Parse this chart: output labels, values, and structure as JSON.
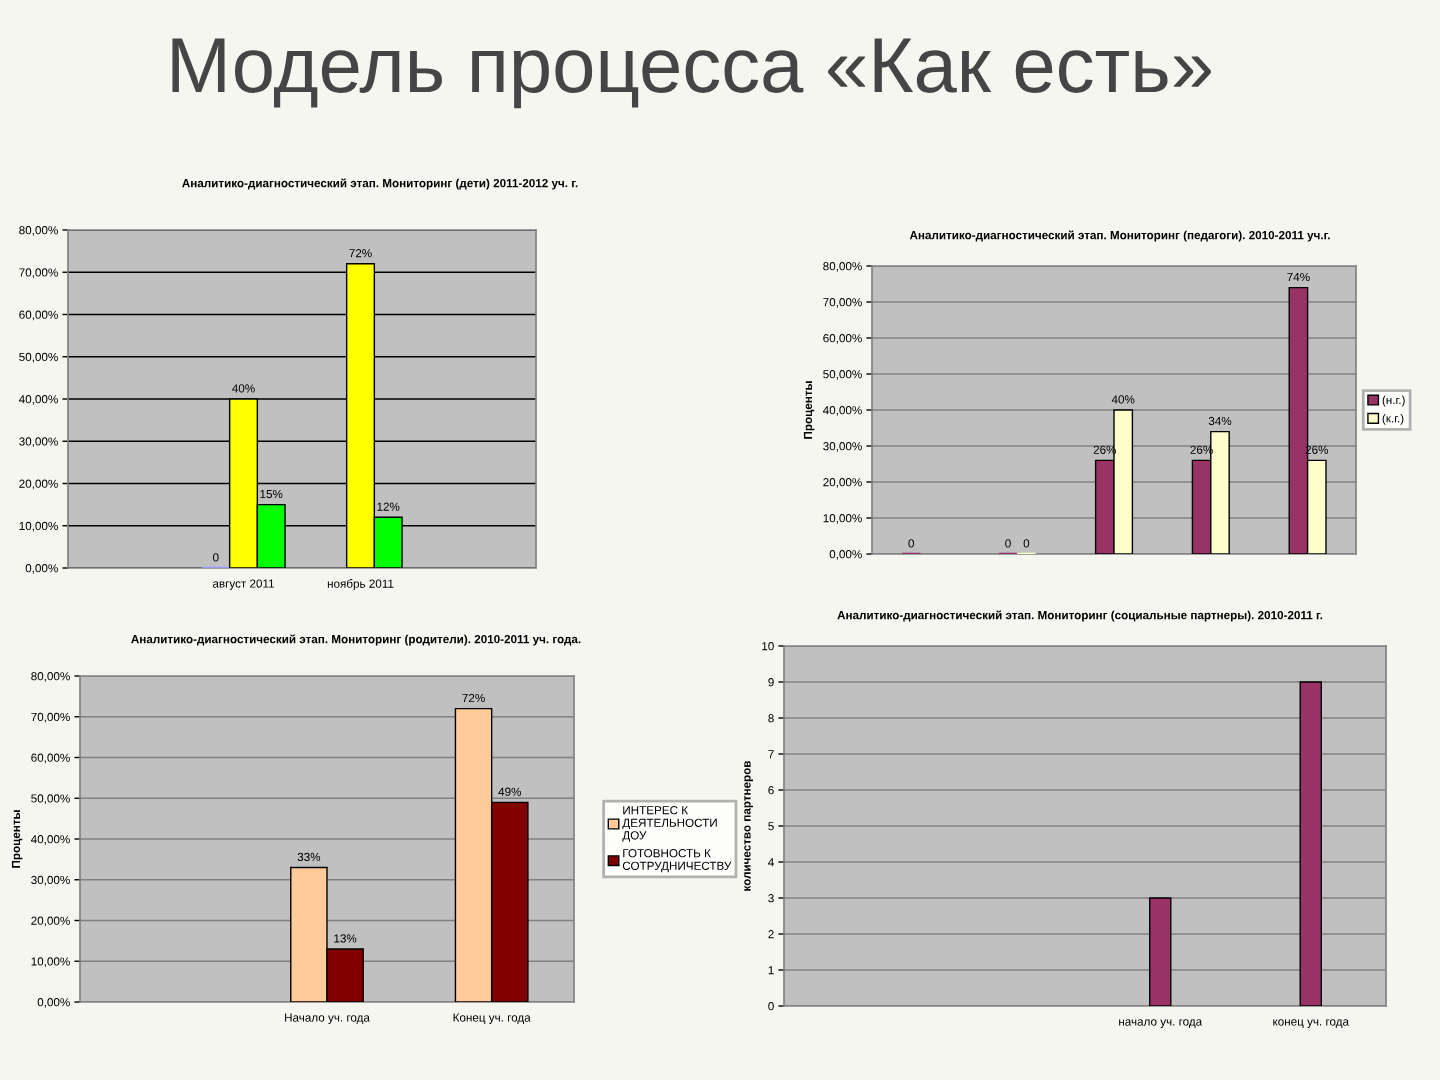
{
  "chart_data": [
    {
      "type": "other",
      "title": "Модель процесса «Как есть»"
    },
    {
      "type": "bar",
      "title": "Аналитико-диагностический этап. Мониторинг (дети) 2011-2012 уч. г.",
      "categories": [
        null,
        "август 2011",
        "ноябрь 2011",
        null
      ],
      "series": [
        {
          "values": [
            null,
            0,
            null,
            null
          ],
          "value_labels": [
            null,
            "0",
            null,
            null
          ]
        },
        {
          "color": "#ffff00",
          "values": [
            null,
            40,
            72,
            null
          ],
          "value_labels": [
            null,
            "40%",
            "72%",
            null
          ]
        },
        {
          "color": "#00ff00",
          "values": [
            null,
            15,
            12,
            null
          ],
          "value_labels": [
            null,
            "15%",
            "12%",
            null
          ]
        }
      ],
      "ylim": [
        0,
        80
      ],
      "yticks": [
        {
          "value": 0,
          "label": "0,00%"
        },
        {
          "value": 10,
          "label": "10,00%"
        },
        {
          "value": 20,
          "label": "20,00%"
        },
        {
          "value": 30,
          "label": "30,00%"
        },
        {
          "value": 40,
          "label": "40,00%"
        },
        {
          "value": 50,
          "label": "50,00%"
        },
        {
          "value": 60,
          "label": "60,00%"
        },
        {
          "value": 70,
          "label": "70,00%"
        },
        {
          "value": 80,
          "label": "80,00%"
        }
      ],
      "grid": "y"
    },
    {
      "type": "bar",
      "title": "Аналитико-диагностический этап. Мониторинг (педагоги). 2010-2011 уч.г.",
      "ylabel": "Проценты",
      "categories": [
        null,
        null,
        null,
        null,
        null
      ],
      "series": [
        {
          "name": "(н.г.)",
          "color": "#993366",
          "values": [
            0,
            0,
            26,
            26,
            74
          ],
          "value_labels": [
            "0",
            "0",
            "26%",
            "26%",
            "74%"
          ]
        },
        {
          "name": "(к.г.)",
          "color": "#ffffcc",
          "values": [
            null,
            0,
            40,
            34,
            26
          ],
          "value_labels": [
            null,
            "0",
            "40%",
            "34%",
            "26%"
          ]
        }
      ],
      "ylim": [
        0,
        80
      ],
      "yticks": [
        {
          "value": 0,
          "label": "0,00%"
        },
        {
          "value": 10,
          "label": "10,00%"
        },
        {
          "value": 20,
          "label": "20,00%"
        },
        {
          "value": 30,
          "label": "30,00%"
        },
        {
          "value": 40,
          "label": "40,00%"
        },
        {
          "value": 50,
          "label": "50,00%"
        },
        {
          "value": 60,
          "label": "60,00%"
        },
        {
          "value": 70,
          "label": "70,00%"
        },
        {
          "value": 80,
          "label": "80,00%"
        }
      ],
      "grid": "y",
      "legend": "right"
    },
    {
      "type": "bar",
      "title": "Аналитико-диагностический этап. Мониторинг (родители). 2010-2011 уч. года.",
      "ylabel": "Проценты",
      "categories": [
        null,
        "Начало уч. года",
        "Конец уч. года"
      ],
      "series": [
        {
          "name": "ИНТЕРЕС К\nДЕЯТЕЛЬНОСТИ\nДОУ",
          "color": "#ffcc99",
          "values": [
            null,
            33,
            72
          ],
          "value_labels": [
            null,
            "33%",
            "72%"
          ]
        },
        {
          "name": "ГОТОВНОСТЬ К\nСОТРУДНИЧЕСТВУ",
          "color": "#800000",
          "values": [
            null,
            13,
            49
          ],
          "value_labels": [
            null,
            "13%",
            "49%"
          ]
        }
      ],
      "ylim": [
        0,
        80
      ],
      "yticks": [
        {
          "value": 0,
          "label": "0,00%"
        },
        {
          "value": 10,
          "label": "10,00%"
        },
        {
          "value": 20,
          "label": "20,00%"
        },
        {
          "value": 30,
          "label": "30,00%"
        },
        {
          "value": 40,
          "label": "40,00%"
        },
        {
          "value": 50,
          "label": "50,00%"
        },
        {
          "value": 60,
          "label": "60,00%"
        },
        {
          "value": 70,
          "label": "70,00%"
        },
        {
          "value": 80,
          "label": "80,00%"
        }
      ],
      "grid": "y",
      "legend": "right"
    },
    {
      "type": "bar",
      "title": "Аналитико-диагностический этап. Мониторинг (социальные партнеры). 2010-2011 г.",
      "ylabel": "количество партнеров",
      "categories": [
        null,
        null,
        "начало уч. года",
        "конец уч. года"
      ],
      "values": [
        null,
        null,
        3,
        9
      ],
      "color": "#993366",
      "ylim": [
        0,
        10
      ],
      "yticks": [
        0,
        1,
        2,
        3,
        4,
        5,
        6,
        7,
        8,
        9,
        10
      ],
      "grid": "y"
    }
  ]
}
